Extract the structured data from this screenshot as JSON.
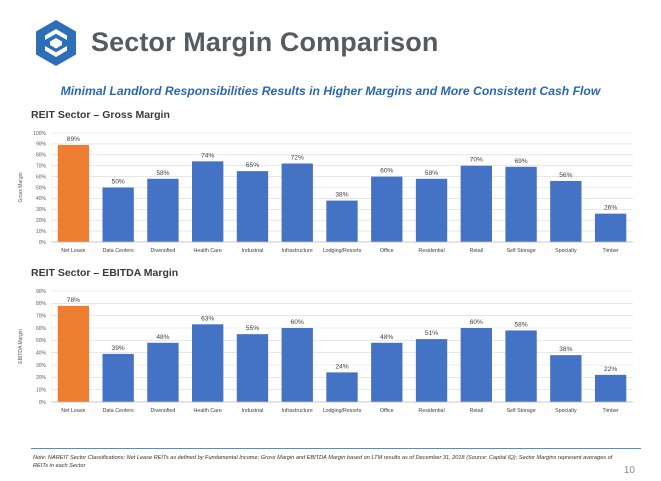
{
  "header": {
    "title": "Sector Margin Comparison",
    "subtitle": "Minimal Landlord Responsibilities Results in Higher Margins and More Consistent Cash Flow"
  },
  "colors": {
    "highlight": "#ED7D31",
    "bar": "#4472C4",
    "title": "#555B61",
    "subtitle": "#2C67B3",
    "logo": "#2C6FB8"
  },
  "chart_data": [
    {
      "type": "bar",
      "title": "REIT Sector – Gross Margin",
      "ylabel": "Gross Margin",
      "xlabel": "",
      "ylim": [
        0,
        100
      ],
      "yticks": [
        "0%",
        "10%",
        "20%",
        "30%",
        "40%",
        "50%",
        "60%",
        "70%",
        "80%",
        "90%",
        "100%"
      ],
      "grid": true,
      "categories": [
        "Net Lease",
        "Data Centers",
        "Diversified",
        "Health Care",
        "Industrial",
        "Infrastructure",
        "Lodging/Resorts",
        "Office",
        "Residential",
        "Retail",
        "Self Storage",
        "Specialty",
        "Timber"
      ],
      "values": [
        89,
        50,
        58,
        74,
        65,
        72,
        38,
        60,
        58,
        70,
        69,
        56,
        26
      ],
      "labels": [
        "89%",
        "50%",
        "58%",
        "74%",
        "65%",
        "72%",
        "38%",
        "60%",
        "58%",
        "70%",
        "69%",
        "56%",
        "26%"
      ],
      "highlight_index": 0
    },
    {
      "type": "bar",
      "title": "REIT Sector – EBITDA Margin",
      "ylabel": "EBITDA Margin",
      "xlabel": "",
      "ylim": [
        0,
        90
      ],
      "yticks": [
        "0%",
        "10%",
        "20%",
        "30%",
        "40%",
        "50%",
        "60%",
        "70%",
        "80%",
        "90%"
      ],
      "grid": true,
      "categories": [
        "Net Lease",
        "Data Centers",
        "Diversified",
        "Health Care",
        "Industrial",
        "Infrastructure",
        "Lodging/Resorts",
        "Office",
        "Residential",
        "Retail",
        "Self Storage",
        "Specialty",
        "Timber"
      ],
      "values": [
        78,
        39,
        48,
        63,
        55,
        60,
        24,
        48,
        51,
        60,
        58,
        38,
        22
      ],
      "labels": [
        "78%",
        "39%",
        "48%",
        "63%",
        "55%",
        "60%",
        "24%",
        "48%",
        "51%",
        "60%",
        "58%",
        "38%",
        "22%"
      ],
      "highlight_index": 0
    }
  ],
  "footer": {
    "note": "Note: NAREIT Sector Classifications; Net Lease REITs as defined by Fundamental Income; Gross Margin and EBITDA Margin based on LTM results as of December 31, 2018 (Source: Capital IQ); Sector Margins represent averages of REITs in each Sector",
    "page_number": "10"
  }
}
